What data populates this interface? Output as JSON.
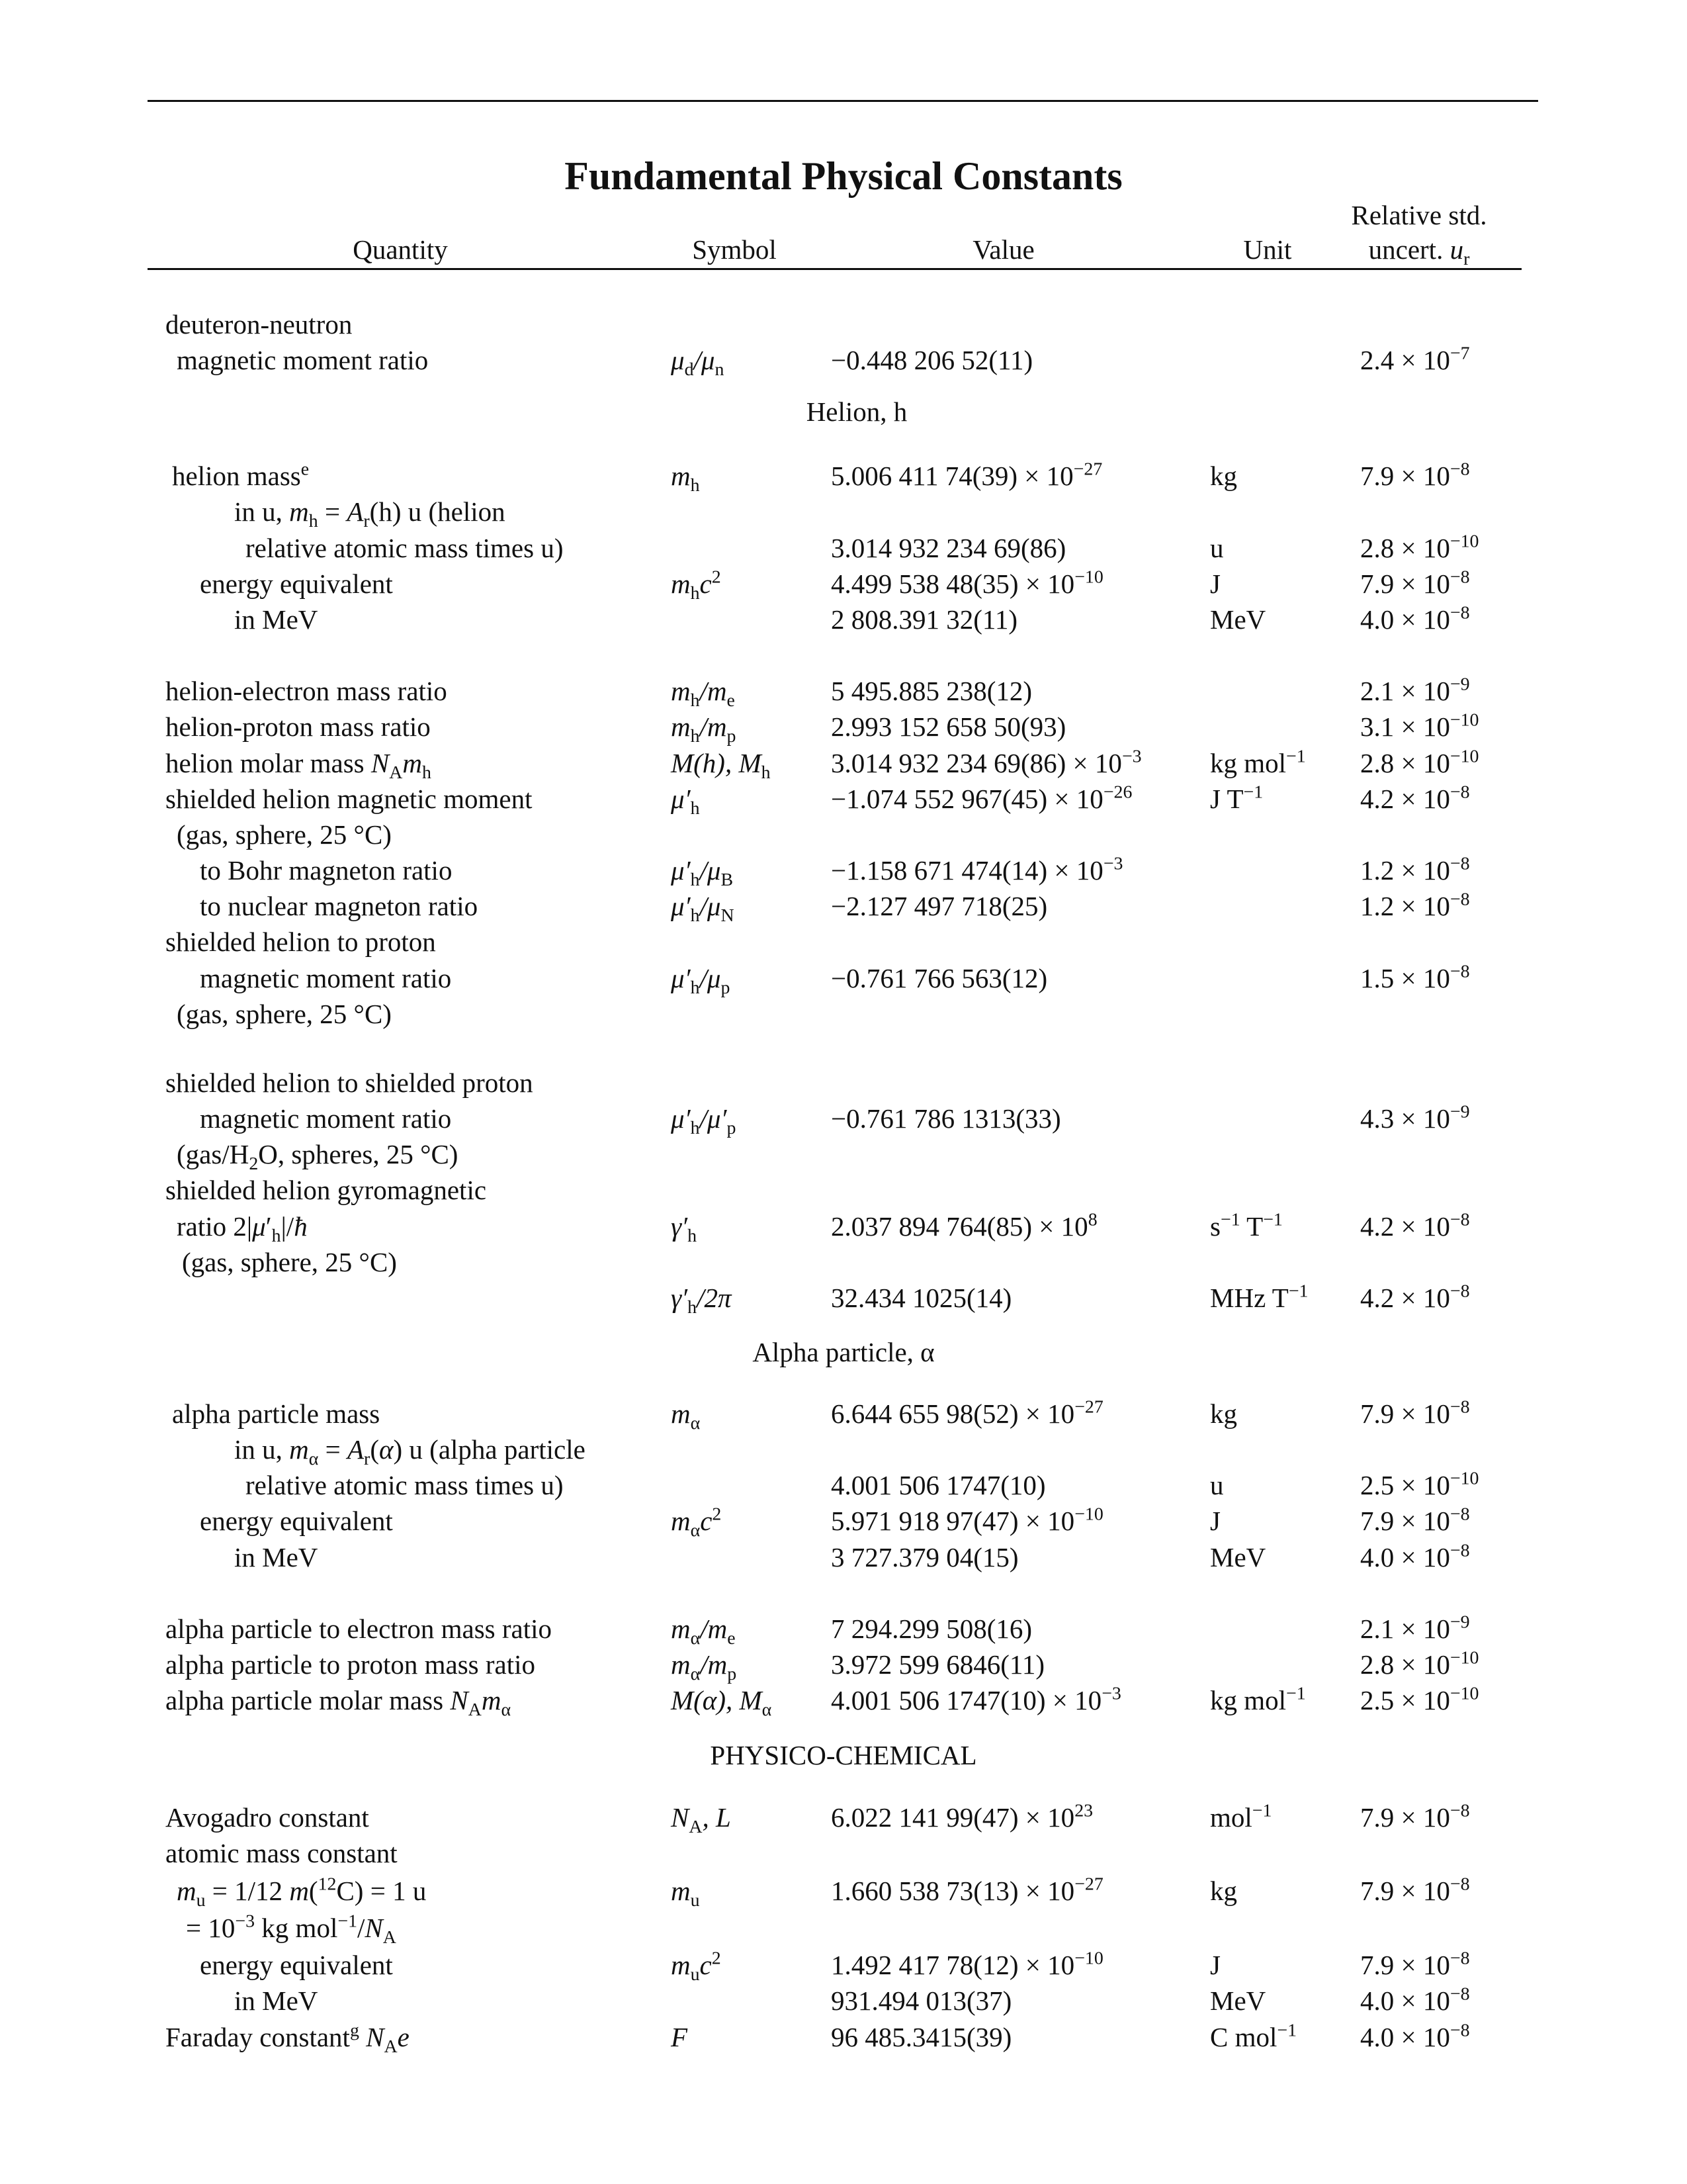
{
  "title": "Fundamental Physical Constants",
  "headers": {
    "quantity": "Quantity",
    "symbol": "Symbol",
    "value": "Value",
    "unit": "Unit",
    "uncert_line1": "Relative std.",
    "uncert_line2": "uncert. u_r"
  },
  "sections": {
    "helion": "Helion, h",
    "alpha": "Alpha particle, α",
    "physico": "PHYSICO-CHEMICAL"
  },
  "rows": [
    {
      "q": "deuteron-neutron"
    },
    {
      "q": "magnetic moment ratio",
      "sym": "μ_d/μ_n",
      "val": "−0.448 206 52(11)",
      "unc": "2.4 × 10^{−7}"
    },
    {
      "q": "helion mass^{e}",
      "sym": "m_h",
      "val": "5.006 411 74(39) × 10^{−27}",
      "unit": "kg",
      "unc": "7.9 × 10^{−8}"
    },
    {
      "q": "in u, *m*_h = *A*_r(h) u (helion"
    },
    {
      "q": "relative atomic mass times u)",
      "val": "3.014 932 234 69(86)",
      "unit": "u",
      "unc": "2.8 × 10^{−10}"
    },
    {
      "q": "energy equivalent",
      "sym": "m_hc^{2}",
      "val": "4.499 538 48(35) × 10^{−10}",
      "unit": "J",
      "unc": "7.9 × 10^{−8}"
    },
    {
      "q": "in MeV",
      "val": "2 808.391 32(11)",
      "unit": "MeV",
      "unc": "4.0 × 10^{−8}"
    },
    {
      "q": "helion-electron mass ratio",
      "sym": "m_h/m_e",
      "val": "5 495.885 238(12)",
      "unc": "2.1 × 10^{−9}"
    },
    {
      "q": "helion-proton mass ratio",
      "sym": "m_h/m_p",
      "val": "2.993 152 658 50(93)",
      "unc": "3.1 × 10^{−10}"
    },
    {
      "q": "helion molar mass *N*_A*m*_h",
      "sym": "M(h), M_h",
      "val": "3.014 932 234 69(86) × 10^{−3}",
      "unit": "kg mol^{−1}",
      "unc": "2.8 × 10^{−10}"
    },
    {
      "q": "shielded helion magnetic moment",
      "sym": "μ′_h",
      "val": "−1.074 552 967(45) × 10^{−26}",
      "unit": "J T^{−1}",
      "unc": "4.2 × 10^{−8}"
    },
    {
      "q": "(gas, sphere, 25 °C)"
    },
    {
      "q": "to Bohr magneton ratio",
      "sym": "μ′_h/μ_B",
      "val": "−1.158 671 474(14) × 10^{−3}",
      "unc": "1.2 × 10^{−8}"
    },
    {
      "q": "to nuclear magneton ratio",
      "sym": "μ′_h/μ_N",
      "val": "−2.127 497 718(25)",
      "unc": "1.2 × 10^{−8}"
    },
    {
      "q": "shielded helion to proton"
    },
    {
      "q": "magnetic moment ratio",
      "sym": "μ′_h/μ_p",
      "val": "−0.761 766 563(12)",
      "unc": "1.5 × 10^{−8}"
    },
    {
      "q": "(gas, sphere, 25 °C)"
    },
    {
      "q": "shielded helion to shielded proton"
    },
    {
      "q": "magnetic moment ratio",
      "sym": "μ′_h/μ′_p",
      "val": "−0.761 786 1313(33)",
      "unc": "4.3 × 10^{−9}"
    },
    {
      "q": "(gas/H_2O, spheres, 25 °C)"
    },
    {
      "q": "shielded helion gyromagnetic"
    },
    {
      "q": "ratio 2|*μ*′_h|/*ħ*",
      "sym": "γ′_h",
      "val": "2.037 894 764(85) × 10^{8}",
      "unit": "s^{−1} T^{−1}",
      "unc": "4.2 × 10^{−8}"
    },
    {
      "q": "(gas, sphere, 25 °C)"
    },
    {
      "sym": "γ′_h/2π",
      "val": "32.434 1025(14)",
      "unit": "MHz T^{−1}",
      "unc": "4.2 × 10^{−8}"
    },
    {
      "q": "alpha particle mass",
      "sym": "m_α",
      "val": "6.644 655 98(52) × 10^{−27}",
      "unit": "kg",
      "unc": "7.9 × 10^{−8}"
    },
    {
      "q": "in u, *m*_α = *A*_r(*α*) u (alpha particle"
    },
    {
      "q": "relative atomic mass times u)",
      "val": "4.001 506 1747(10)",
      "unit": "u",
      "unc": "2.5 × 10^{−10}"
    },
    {
      "q": "energy equivalent",
      "sym": "m_αc^{2}",
      "val": "5.971 918 97(47) × 10^{−10}",
      "unit": "J",
      "unc": "7.9 × 10^{−8}"
    },
    {
      "q": "in MeV",
      "val": "3 727.379 04(15)",
      "unit": "MeV",
      "unc": "4.0 × 10^{−8}"
    },
    {
      "q": "alpha particle to electron mass ratio",
      "sym": "m_α/m_e",
      "val": "7 294.299 508(16)",
      "unc": "2.1 × 10^{−9}"
    },
    {
      "q": "alpha particle to proton mass ratio",
      "sym": "m_α/m_p",
      "val": "3.972 599 6846(11)",
      "unc": "2.8 × 10^{−10}"
    },
    {
      "q": "alpha particle molar mass *N*_A*m*_α",
      "sym": "M(α), M_α",
      "val": "4.001 506 1747(10) × 10^{−3}",
      "unit": "kg mol^{−1}",
      "unc": "2.5 × 10^{−10}"
    },
    {
      "q": "Avogadro constant",
      "sym": "N_A, L",
      "val": "6.022 141 99(47) × 10^{23}",
      "unit": "mol^{−1}",
      "unc": "7.9 × 10^{−8}"
    },
    {
      "q": "atomic mass constant"
    },
    {
      "q": "*m*_u = 1/12 *m*(^{12}C) = 1 u",
      "sym": "m_u",
      "val": "1.660 538 73(13) × 10^{−27}",
      "unit": "kg",
      "unc": "7.9 × 10^{−8}"
    },
    {
      "q": "= 10^{−3} kg mol^{−1}/*N*_A"
    },
    {
      "q": "energy equivalent",
      "sym": "m_uc^{2}",
      "val": "1.492 417 78(12) × 10^{−10}",
      "unit": "J",
      "unc": "7.9 × 10^{−8}"
    },
    {
      "q": "in MeV",
      "val": "931.494 013(37)",
      "unit": "MeV",
      "unc": "4.0 × 10^{−8}"
    },
    {
      "q": "Faraday constant^{g} *N*_A*e*",
      "sym": "F",
      "val": "96 485.3415(39)",
      "unit": "C mol^{−1}",
      "unc": "4.0 × 10^{−8}"
    }
  ]
}
